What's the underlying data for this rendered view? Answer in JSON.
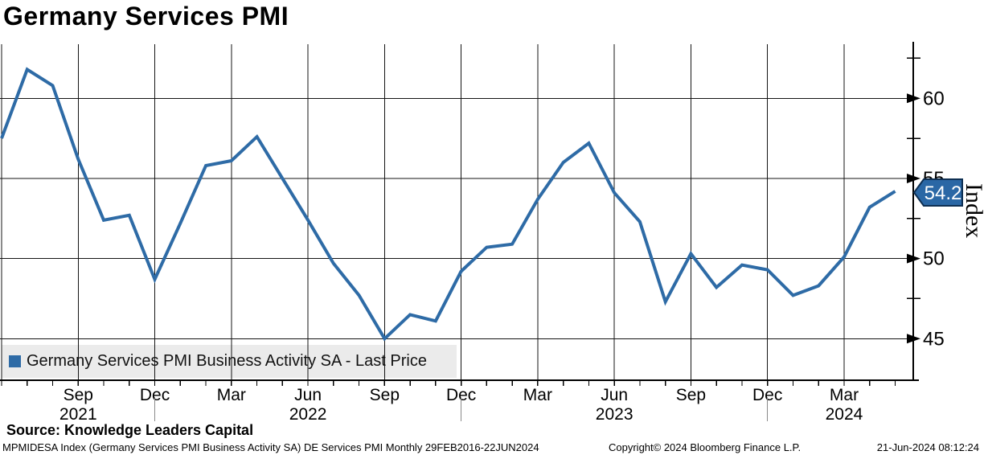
{
  "title": "Germany Services PMI",
  "legend": {
    "label": "Germany Services PMI Business Activity SA - Last Price"
  },
  "axis_badge": {
    "value": "54.2"
  },
  "y_axis_title": "Index",
  "source_line": "Source: Knowledge Leaders Capital",
  "footer": {
    "left": "MPMIDESA Index (Germany Services PMI Business Activity SA) DE Services PMI  Monthly 29FEB2016-22JUN2024",
    "center": "Copyright© 2024 Bloomberg Finance L.P.",
    "right": "21-Jun-2024 08:12:24"
  },
  "colors": {
    "line": "#2e6ba6",
    "badge_fill": "#2a67a5",
    "badge_border": "#0e2f52",
    "grid": "#141414",
    "axis": "#000000",
    "legend_bg": "#ebebeb",
    "year_divider": "#8a8a8a"
  },
  "chart_data": {
    "type": "line",
    "title": "Germany Services PMI",
    "ylabel": "Index",
    "grid": true,
    "legend_position": "bottom-left",
    "y_ticks": [
      45,
      50,
      55,
      60
    ],
    "y_minor_ticks": [
      47.5,
      52.5,
      57.5,
      62.5
    ],
    "ylim": [
      42.4,
      63.4
    ],
    "last_price": 54.2,
    "categories": [
      "Jun 2021",
      "Jul 2021",
      "Aug 2021",
      "Sep 2021",
      "Oct 2021",
      "Nov 2021",
      "Dec 2021",
      "Jan 2022",
      "Feb 2022",
      "Mar 2022",
      "Apr 2022",
      "May 2022",
      "Jun 2022",
      "Jul 2022",
      "Aug 2022",
      "Sep 2022",
      "Oct 2022",
      "Nov 2022",
      "Dec 2022",
      "Jan 2023",
      "Feb 2023",
      "Mar 2023",
      "Apr 2023",
      "May 2023",
      "Jun 2023",
      "Jul 2023",
      "Aug 2023",
      "Sep 2023",
      "Oct 2023",
      "Nov 2023",
      "Dec 2023",
      "Jan 2024",
      "Feb 2024",
      "Mar 2024",
      "Apr 2024",
      "May 2024"
    ],
    "series": [
      {
        "name": "Germany Services PMI Business Activity SA - Last Price",
        "color": "#2e6ba6",
        "values": [
          57.5,
          61.8,
          60.8,
          56.2,
          52.4,
          52.7,
          48.7,
          52.2,
          55.8,
          56.1,
          57.6,
          55.0,
          52.4,
          49.7,
          47.7,
          45.0,
          46.5,
          46.1,
          49.2,
          50.7,
          50.9,
          53.7,
          56.0,
          57.2,
          54.1,
          52.3,
          47.3,
          50.3,
          48.2,
          49.6,
          49.3,
          47.7,
          48.3,
          50.1,
          53.2,
          54.2
        ]
      }
    ],
    "x_tick_labels": [
      {
        "month": "Sep",
        "index": 3
      },
      {
        "month": "Dec",
        "index": 6
      },
      {
        "month": "Mar",
        "index": 9
      },
      {
        "month": "Jun",
        "index": 12
      },
      {
        "month": "Sep",
        "index": 15
      },
      {
        "month": "Dec",
        "index": 18
      },
      {
        "month": "Mar",
        "index": 21
      },
      {
        "month": "Jun",
        "index": 24
      },
      {
        "month": "Sep",
        "index": 27
      },
      {
        "month": "Dec",
        "index": 30
      },
      {
        "month": "Mar",
        "index": 33
      }
    ],
    "year_labels": [
      {
        "year": "2021",
        "index": 3
      },
      {
        "year": "2022",
        "index": 12
      },
      {
        "year": "2023",
        "index": 24
      },
      {
        "year": "2024",
        "index": 33
      }
    ],
    "year_divider_indices": [
      6,
      18,
      30
    ]
  }
}
